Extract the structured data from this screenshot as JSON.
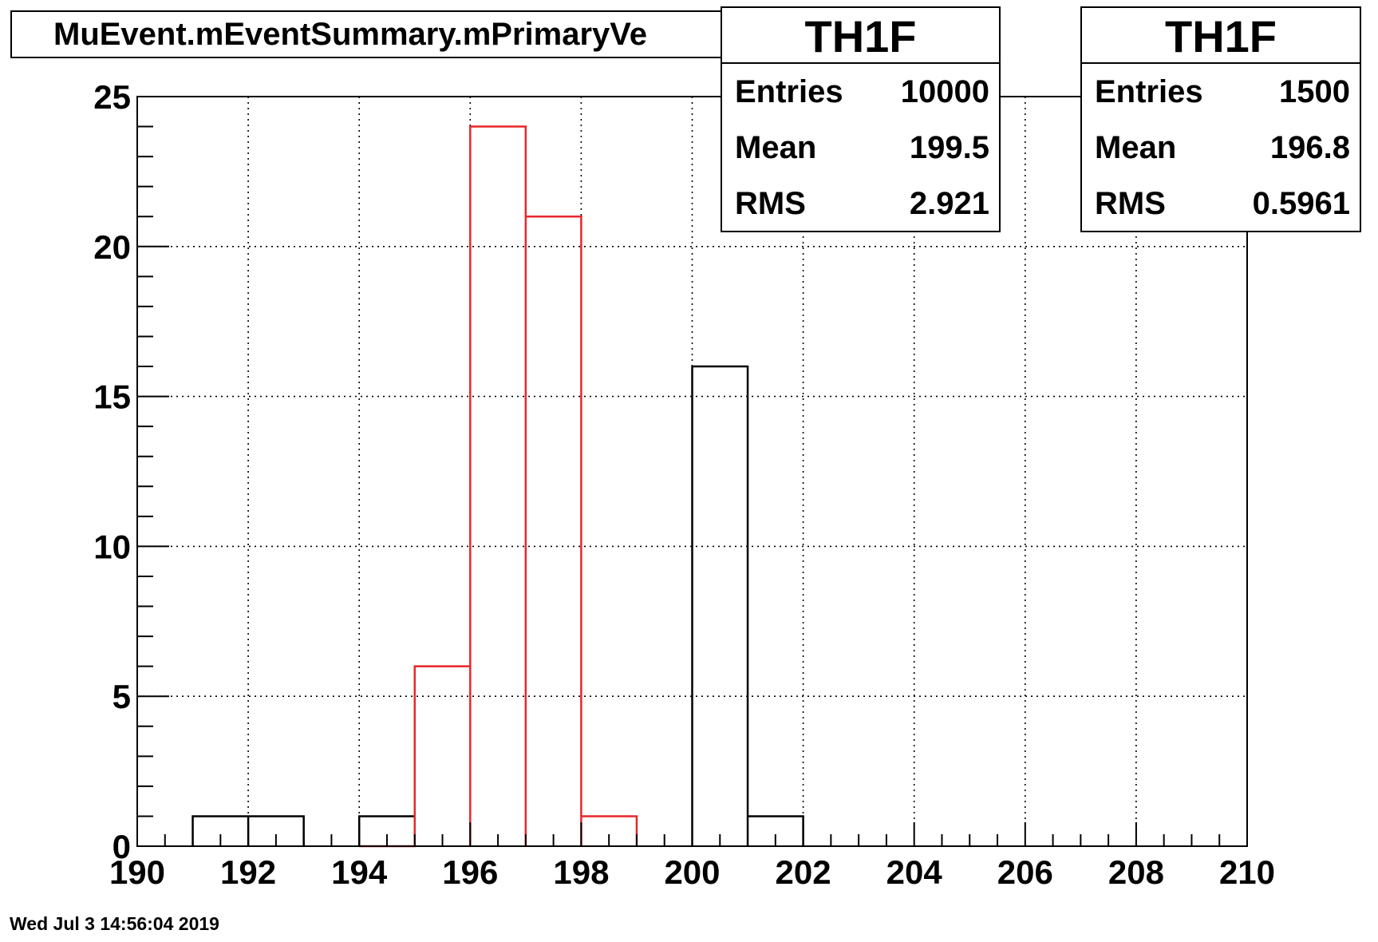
{
  "chart_data": {
    "type": "histogram",
    "title": "MuEvent.mEventSummary.mPrimaryVe",
    "xlim": [
      190,
      210
    ],
    "ylim": [
      0,
      25
    ],
    "x_ticks": [
      190,
      192,
      194,
      196,
      198,
      200,
      202,
      204,
      206,
      208,
      210
    ],
    "y_ticks": [
      0,
      5,
      10,
      15,
      20,
      25
    ],
    "grid": true,
    "series": [
      {
        "color": "#000000",
        "bins": [
          {
            "x0": 191,
            "x1": 192,
            "value": 1
          },
          {
            "x0": 192,
            "x1": 193,
            "value": 1
          },
          {
            "x0": 194,
            "x1": 195,
            "value": 1
          },
          {
            "x0": 200,
            "x1": 201,
            "value": 16
          },
          {
            "x0": 201,
            "x1": 202,
            "value": 1
          }
        ]
      },
      {
        "color": "#e8262a",
        "bins": [
          {
            "x0": 194,
            "x1": 195,
            "value": 0
          },
          {
            "x0": 195,
            "x1": 196,
            "value": 6
          },
          {
            "x0": 196,
            "x1": 197,
            "value": 24
          },
          {
            "x0": 197,
            "x1": 198,
            "value": 21
          },
          {
            "x0": 198,
            "x1": 199,
            "value": 1
          }
        ]
      }
    ],
    "stats_boxes": [
      {
        "header": "TH1F",
        "rows": [
          {
            "label": "Entries",
            "value": "10000"
          },
          {
            "label": "Mean",
            "value": "199.5"
          },
          {
            "label": "RMS",
            "value": "2.921"
          }
        ]
      },
      {
        "header": "TH1F",
        "rows": [
          {
            "label": "Entries",
            "value": "1500"
          },
          {
            "label": "Mean",
            "value": "196.8"
          },
          {
            "label": "RMS",
            "value": "0.5961"
          }
        ]
      }
    ]
  },
  "footer": {
    "timestamp": "Wed Jul  3 14:56:04 2019"
  }
}
